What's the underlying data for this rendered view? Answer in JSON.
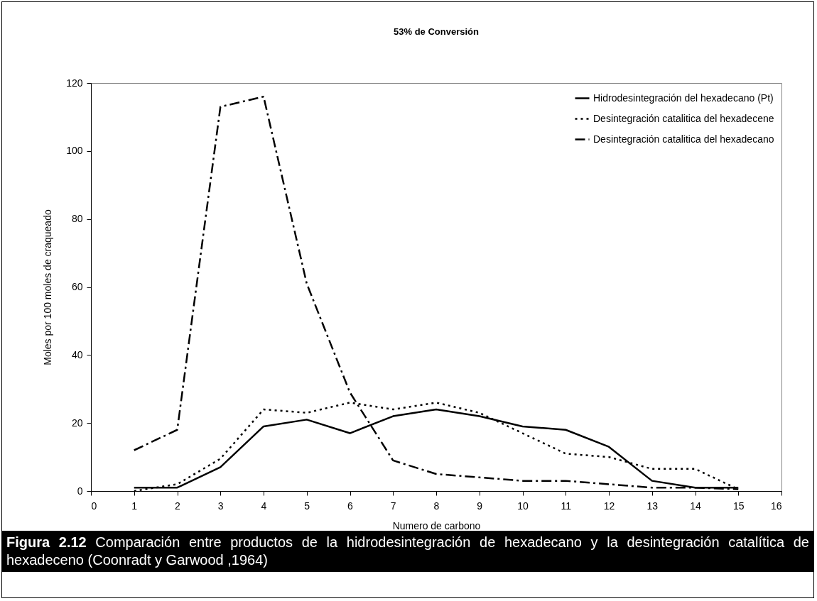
{
  "chart_data": {
    "type": "line",
    "title": "53% de Conversión",
    "xlabel": "Numero de carbono",
    "ylabel": "Moles por 100 moles de craqueado",
    "x": [
      1,
      2,
      3,
      4,
      5,
      6,
      7,
      8,
      9,
      10,
      11,
      12,
      13,
      14,
      15
    ],
    "series": [
      {
        "name": "Hidrodesintegración del hexadecano (Pt)",
        "color": "#000000",
        "line_style": "solid",
        "values": [
          1,
          1,
          7,
          19,
          21,
          17,
          22,
          24,
          22,
          19,
          18,
          13,
          3,
          1,
          1
        ]
      },
      {
        "name": "Desintegración catalitica del hexadecene",
        "color": "#000000",
        "line_style": "dotted",
        "values": [
          0,
          2,
          9.5,
          24,
          23,
          26,
          24,
          26,
          23,
          17,
          11,
          10,
          6.5,
          6.5,
          0.5
        ]
      },
      {
        "name": "Desintegración catalitica del hexadecano",
        "color": "#000000",
        "line_style": "dashed",
        "values": [
          12,
          18,
          113,
          116,
          61,
          29,
          9,
          5,
          4,
          3,
          3,
          2,
          1,
          1,
          0.5
        ]
      }
    ],
    "xlim": [
      0,
      16
    ],
    "xticks": [
      0,
      1,
      2,
      3,
      4,
      5,
      6,
      7,
      8,
      9,
      10,
      11,
      12,
      13,
      14,
      15,
      16
    ],
    "ylim": [
      0,
      120
    ],
    "yticks": [
      0,
      20,
      40,
      60,
      80,
      100,
      120
    ],
    "grid": false,
    "legend": "top right",
    "marker": "none",
    "annotations": [
      "Figura 2.12 Comparación entre productos de la hidrodesintegración de hexadecano y la desintegración catalítica de hexadeceno (Coonradt y Garwood ,1964)"
    ]
  }
}
